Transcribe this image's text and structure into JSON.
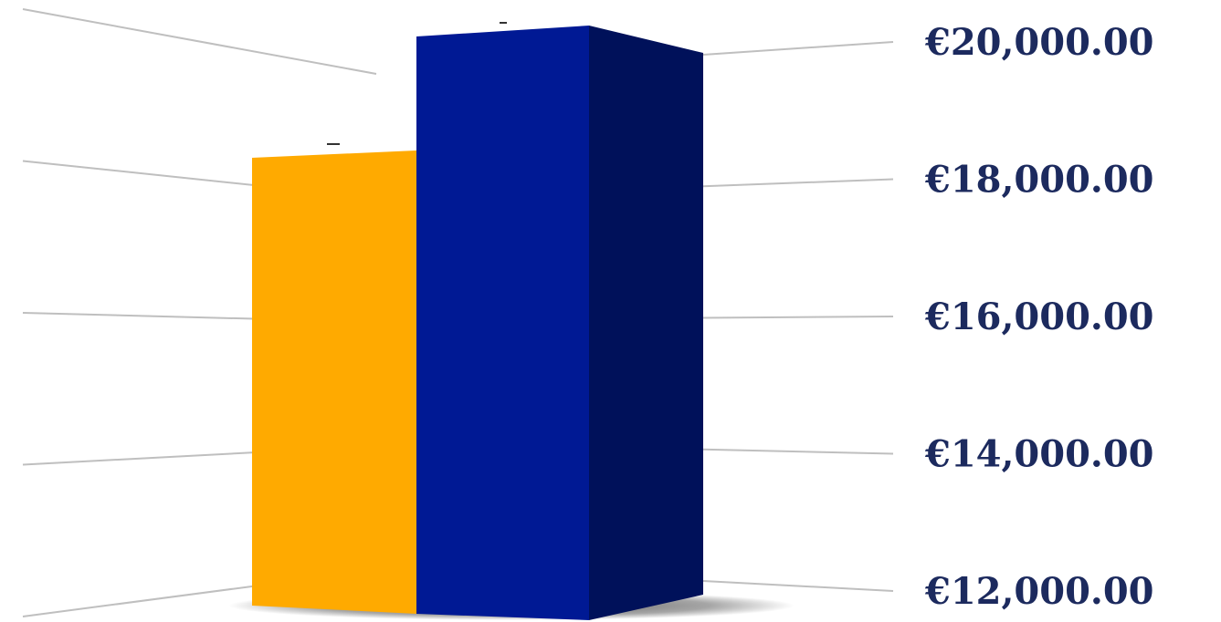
{
  "chart_data": {
    "type": "bar",
    "title": "",
    "xlabel": "",
    "ylabel": "",
    "ylim": [
      12000,
      20000
    ],
    "grid": true,
    "legend": "none",
    "y_ticks": [
      {
        "value": 20000,
        "label": "€20,000.00"
      },
      {
        "value": 18000,
        "label": "€18,000.00"
      },
      {
        "value": 16000,
        "label": "€16,000.00"
      },
      {
        "value": 14000,
        "label": "€14,000.00"
      },
      {
        "value": 12000,
        "label": "€12,000.00"
      }
    ],
    "series": [
      {
        "values": [
          18300
        ],
        "color": "#FFAA00"
      },
      {
        "values": [
          20200
        ],
        "color": "#001994"
      }
    ],
    "colors": {
      "gold_front": "#FFAA00",
      "blue_front": "#001994",
      "blue_side": "#00115A",
      "grid": "#BFBFBF",
      "tick_text": "#1C2A5E"
    }
  }
}
